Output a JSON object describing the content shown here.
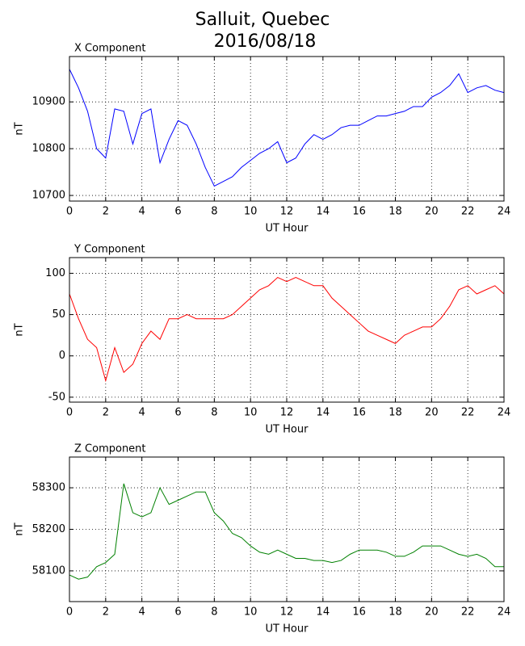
{
  "title": "Salluit, Quebec",
  "subtitle": "2016/08/18",
  "chart_data": [
    {
      "type": "line",
      "title": "X Component",
      "xlabel": "UT Hour",
      "ylabel": "nT",
      "color": "#0000ff",
      "grid": true,
      "x": [
        0,
        0.5,
        1,
        1.5,
        2,
        2.5,
        3,
        3.5,
        4,
        4.5,
        5,
        5.5,
        6,
        6.5,
        7,
        7.5,
        8,
        8.5,
        9,
        9.5,
        10,
        10.5,
        11,
        11.5,
        12,
        12.5,
        13,
        13.5,
        14,
        14.5,
        15,
        15.5,
        16,
        16.5,
        17,
        17.5,
        18,
        18.5,
        19,
        19.5,
        20,
        20.5,
        21,
        21.5,
        22,
        22.5,
        23,
        23.5,
        24
      ],
      "values": [
        10970,
        10930,
        10880,
        10800,
        10780,
        10885,
        10880,
        10810,
        10875,
        10885,
        10770,
        10820,
        10860,
        10850,
        10810,
        10760,
        10720,
        10730,
        10740,
        10760,
        10775,
        10790,
        10800,
        10815,
        10770,
        10780,
        10810,
        10830,
        10820,
        10830,
        10845,
        10850,
        10850,
        10860,
        10870,
        10870,
        10875,
        10880,
        10890,
        10890,
        10910,
        10920,
        10935,
        10960,
        10920,
        10930,
        10935,
        10925,
        10920
      ],
      "xlim": [
        0,
        24
      ],
      "xticks": [
        0,
        2,
        4,
        6,
        8,
        10,
        12,
        14,
        16,
        18,
        20,
        22,
        24
      ],
      "ylim": [
        10688,
        10997
      ],
      "yticks": [
        10700,
        10800,
        10900
      ]
    },
    {
      "type": "line",
      "title": "Y Component",
      "xlabel": "UT Hour",
      "ylabel": "nT",
      "color": "#ff0000",
      "grid": true,
      "x": [
        0,
        0.5,
        1,
        1.5,
        2,
        2.5,
        3,
        3.5,
        4,
        4.5,
        5,
        5.5,
        6,
        6.5,
        7,
        7.5,
        8,
        8.5,
        9,
        9.5,
        10,
        10.5,
        11,
        11.5,
        12,
        12.5,
        13,
        13.5,
        14,
        14.5,
        15,
        15.5,
        16,
        16.5,
        17,
        17.5,
        18,
        18.5,
        19,
        19.5,
        20,
        20.5,
        21,
        21.5,
        22,
        22.5,
        23,
        23.5,
        24
      ],
      "values": [
        75,
        45,
        20,
        10,
        -30,
        10,
        -20,
        -10,
        15,
        30,
        20,
        45,
        45,
        50,
        45,
        45,
        45,
        45,
        50,
        60,
        70,
        80,
        85,
        95,
        90,
        95,
        90,
        85,
        85,
        70,
        60,
        50,
        40,
        30,
        25,
        20,
        15,
        25,
        30,
        35,
        35,
        45,
        60,
        80,
        85,
        75,
        80,
        85,
        75
      ],
      "xlim": [
        0,
        24
      ],
      "xticks": [
        0,
        2,
        4,
        6,
        8,
        10,
        12,
        14,
        16,
        18,
        20,
        22,
        24
      ],
      "ylim": [
        -56,
        119
      ],
      "yticks": [
        -50,
        0,
        50,
        100
      ]
    },
    {
      "type": "line",
      "title": "Z Component",
      "xlabel": "UT Hour",
      "ylabel": "nT",
      "color": "#008000",
      "grid": true,
      "x": [
        0,
        0.5,
        1,
        1.5,
        2,
        2.5,
        3,
        3.5,
        4,
        4.5,
        5,
        5.5,
        6,
        6.5,
        7,
        7.5,
        8,
        8.5,
        9,
        9.5,
        10,
        10.5,
        11,
        11.5,
        12,
        12.5,
        13,
        13.5,
        14,
        14.5,
        15,
        15.5,
        16,
        16.5,
        17,
        17.5,
        18,
        18.5,
        19,
        19.5,
        20,
        20.5,
        21,
        21.5,
        22,
        22.5,
        23,
        23.5,
        24
      ],
      "values": [
        58090,
        58080,
        58085,
        58110,
        58120,
        58140,
        58310,
        58240,
        58230,
        58240,
        58300,
        58260,
        58270,
        58280,
        58290,
        58290,
        58240,
        58220,
        58190,
        58180,
        58160,
        58145,
        58140,
        58150,
        58140,
        58130,
        58130,
        58125,
        58125,
        58120,
        58125,
        58140,
        58150,
        58150,
        58150,
        58145,
        58135,
        58135,
        58145,
        58160,
        58160,
        58160,
        58150,
        58140,
        58135,
        58140,
        58130,
        58110,
        58110
      ],
      "xlim": [
        0,
        24
      ],
      "xticks": [
        0,
        2,
        4,
        6,
        8,
        10,
        12,
        14,
        16,
        18,
        20,
        22,
        24
      ],
      "ylim": [
        58026,
        58374
      ],
      "yticks": [
        58100,
        58200,
        58300
      ]
    }
  ]
}
